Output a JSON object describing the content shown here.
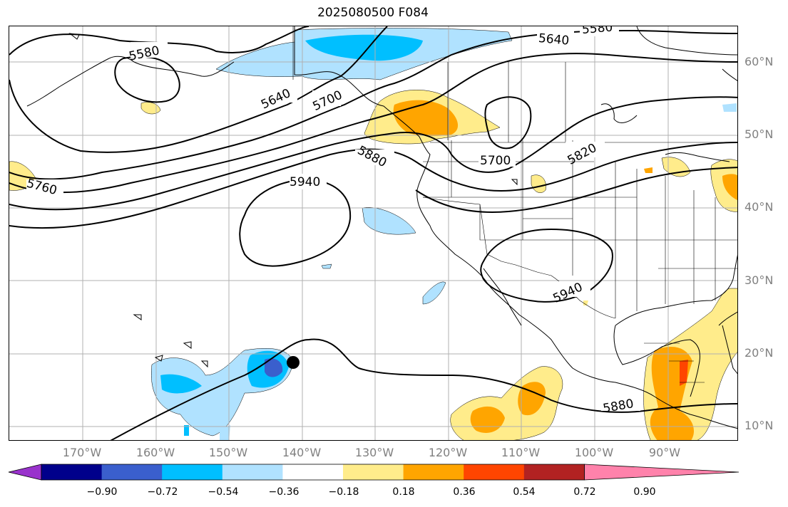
{
  "title": "2025080500 F084",
  "map": {
    "lat_labels": [
      "60°N",
      "50°N",
      "40°N",
      "30°N",
      "20°N",
      "10°N"
    ],
    "lon_labels": [
      "170°W",
      "160°W",
      "150°W",
      "140°W",
      "130°W",
      "120°W",
      "110°W",
      "100°W",
      "90°W"
    ],
    "contour_labels": [
      "5580",
      "5580",
      "5640",
      "5640",
      "5700",
      "5700",
      "5760",
      "5820",
      "5880",
      "5880",
      "5940",
      "5940"
    ],
    "storm_marker": "black-dot"
  },
  "colorbar": {
    "ticks": [
      "−0.90",
      "−0.72",
      "−0.54",
      "−0.36",
      "−0.18",
      "0.18",
      "0.36",
      "0.54",
      "0.72",
      "0.90"
    ],
    "colors": [
      "#9932cc",
      "#00008b",
      "#3a5fcd",
      "#00bfff",
      "#b0e2ff",
      "#ffffff",
      "#ffec8b",
      "#ffa500",
      "#ff4500",
      "#b22222",
      "#ff82ab"
    ]
  }
}
